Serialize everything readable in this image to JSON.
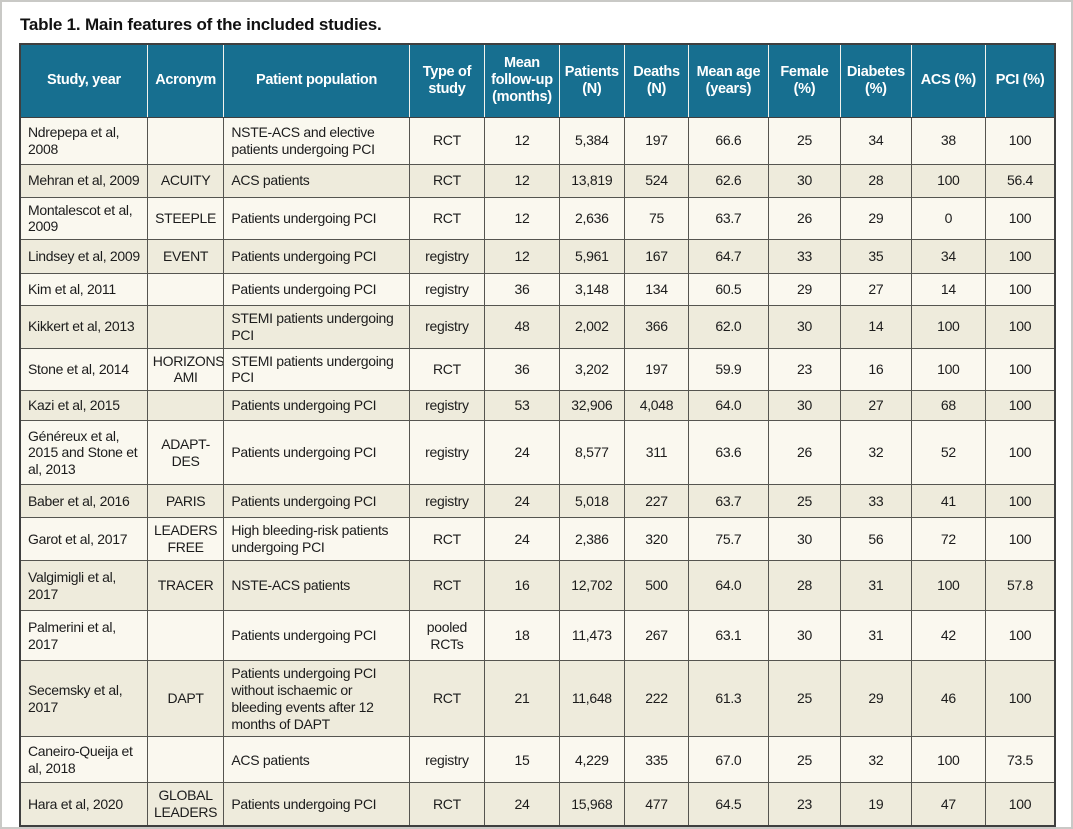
{
  "title": "Table 1. Main features of the included studies.",
  "colors": {
    "header_bg": "#176f90",
    "header_text": "#ffffff",
    "row_odd": "#faf8ef",
    "row_even": "#eeebdc",
    "border": "#555550"
  },
  "table": {
    "columns": [
      "Study, year",
      "Acronym",
      "Patient population",
      "Type of study",
      "Mean follow-up (months)",
      "Patients (N)",
      "Deaths (N)",
      "Mean age (years)",
      "Female (%)",
      "Diabetes (%)",
      "ACS (%)",
      "PCI (%)"
    ],
    "rows": [
      [
        "Ndrepepa et al, 2008",
        "",
        "NSTE-ACS and elective patients undergoing PCI",
        "RCT",
        "12",
        "5,384",
        "197",
        "66.6",
        "25",
        "34",
        "38",
        "100"
      ],
      [
        "Mehran et al, 2009",
        "ACUITY",
        "ACS patients",
        "RCT",
        "12",
        "13,819",
        "524",
        "62.6",
        "30",
        "28",
        "100",
        "56.4"
      ],
      [
        "Montalescot et al, 2009",
        "STEEPLE",
        "Patients undergoing PCI",
        "RCT",
        "12",
        "2,636",
        "75",
        "63.7",
        "26",
        "29",
        "0",
        "100"
      ],
      [
        "Lindsey et al, 2009",
        "EVENT",
        "Patients undergoing PCI",
        "registry",
        "12",
        "5,961",
        "167",
        "64.7",
        "33",
        "35",
        "34",
        "100"
      ],
      [
        "Kim et al, 2011",
        "",
        "Patients undergoing PCI",
        "registry",
        "36",
        "3,148",
        "134",
        "60.5",
        "29",
        "27",
        "14",
        "100"
      ],
      [
        "Kikkert et al, 2013",
        "",
        "STEMI patients undergoing PCI",
        "registry",
        "48",
        "2,002",
        "366",
        "62.0",
        "30",
        "14",
        "100",
        "100"
      ],
      [
        "Stone et al, 2014",
        "HORIZONS-AMI",
        "STEMI patients undergoing PCI",
        "RCT",
        "36",
        "3,202",
        "197",
        "59.9",
        "23",
        "16",
        "100",
        "100"
      ],
      [
        "Kazi et al, 2015",
        "",
        "Patients undergoing PCI",
        "registry",
        "53",
        "32,906",
        "4,048",
        "64.0",
        "30",
        "27",
        "68",
        "100"
      ],
      [
        "Généreux et al, 2015 and Stone et al, 2013",
        "ADAPT-DES",
        "Patients undergoing PCI",
        "registry",
        "24",
        "8,577",
        "311",
        "63.6",
        "26",
        "32",
        "52",
        "100"
      ],
      [
        "Baber et al, 2016",
        "PARIS",
        "Patients undergoing PCI",
        "registry",
        "24",
        "5,018",
        "227",
        "63.7",
        "25",
        "33",
        "41",
        "100"
      ],
      [
        "Garot et al, 2017",
        "LEADERS FREE",
        "High bleeding-risk patients undergoing PCI",
        "RCT",
        "24",
        "2,386",
        "320",
        "75.7",
        "30",
        "56",
        "72",
        "100"
      ],
      [
        "Valgimigli et al, 2017",
        "TRACER",
        "NSTE-ACS patients",
        "RCT",
        "16",
        "12,702",
        "500",
        "64.0",
        "28",
        "31",
        "100",
        "57.8"
      ],
      [
        "Palmerini et al, 2017",
        "",
        "Patients undergoing PCI",
        "pooled RCTs",
        "18",
        "11,473",
        "267",
        "63.1",
        "30",
        "31",
        "42",
        "100"
      ],
      [
        "Secemsky et al, 2017",
        "DAPT",
        "Patients undergoing PCI without ischaemic or bleeding events after 12 months of DAPT",
        "RCT",
        "21",
        "11,648",
        "222",
        "61.3",
        "25",
        "29",
        "46",
        "100"
      ],
      [
        "Caneiro-Queija et al, 2018",
        "",
        "ACS patients",
        "registry",
        "15",
        "4,229",
        "335",
        "67.0",
        "25",
        "32",
        "100",
        "73.5"
      ],
      [
        "Hara et al, 2020",
        "GLOBAL LEADERS",
        "Patients undergoing PCI",
        "RCT",
        "24",
        "15,968",
        "477",
        "64.5",
        "23",
        "19",
        "47",
        "100"
      ]
    ]
  }
}
